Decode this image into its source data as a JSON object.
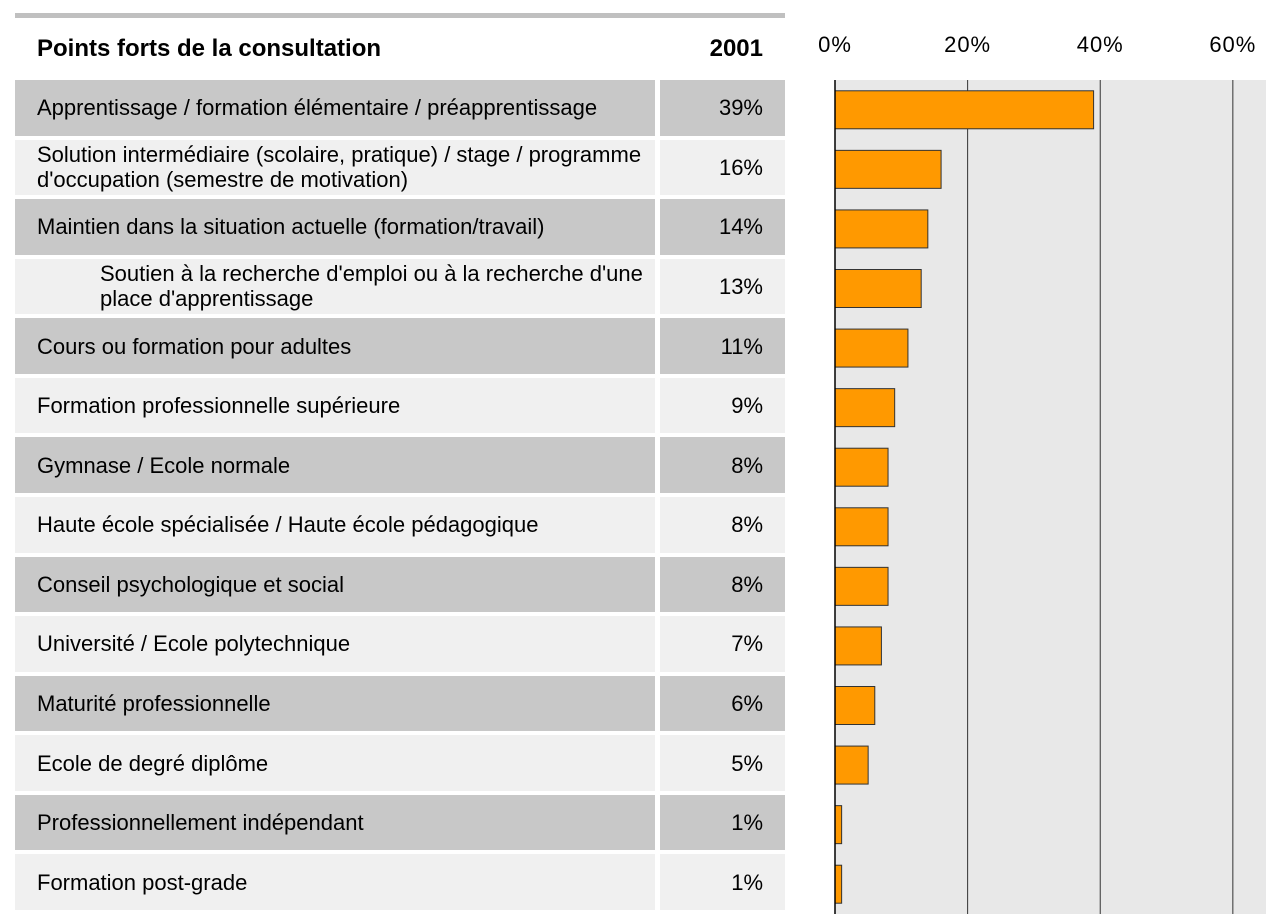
{
  "chart_data": {
    "type": "bar",
    "orientation": "horizontal",
    "column_headers": [
      "Points forts de la consultation",
      "2001"
    ],
    "categories": [
      "Apprentissage / formation élémentaire / préapprentissage",
      "Solution intermédiaire (scolaire, pratique) / stage / programme d'occupation (semestre de motivation)",
      "Maintien dans la situation actuelle (formation/travail)",
      "Soutien à la recherche d'emploi ou à la recherche d'une place d'apprentissage",
      "Cours ou formation pour adultes",
      "Formation professionnelle supérieure",
      "Gymnase / Ecole normale",
      "Haute école spécialisée / Haute école pédagogique",
      "Conseil psychologique et social",
      "Université / Ecole polytechnique",
      "Maturité professionnelle",
      "Ecole de degré diplôme",
      "Professionnellement indépendant",
      "Formation post-grade"
    ],
    "values": [
      39,
      16,
      14,
      13,
      11,
      9,
      8,
      8,
      8,
      7,
      6,
      5,
      1,
      1
    ],
    "value_labels": [
      "39%",
      "16%",
      "14%",
      "13%",
      "11%",
      "9%",
      "8%",
      "8%",
      "8%",
      "7%",
      "6%",
      "5%",
      "1%",
      "1%"
    ],
    "color": "#ff9900",
    "xlim": [
      0,
      65
    ],
    "xticks": [
      {
        "value": 0,
        "label": "0%"
      },
      {
        "value": 20,
        "label": "20%"
      },
      {
        "value": 40,
        "label": "40%"
      },
      {
        "value": 60,
        "label": "60%"
      }
    ],
    "grid": true
  }
}
